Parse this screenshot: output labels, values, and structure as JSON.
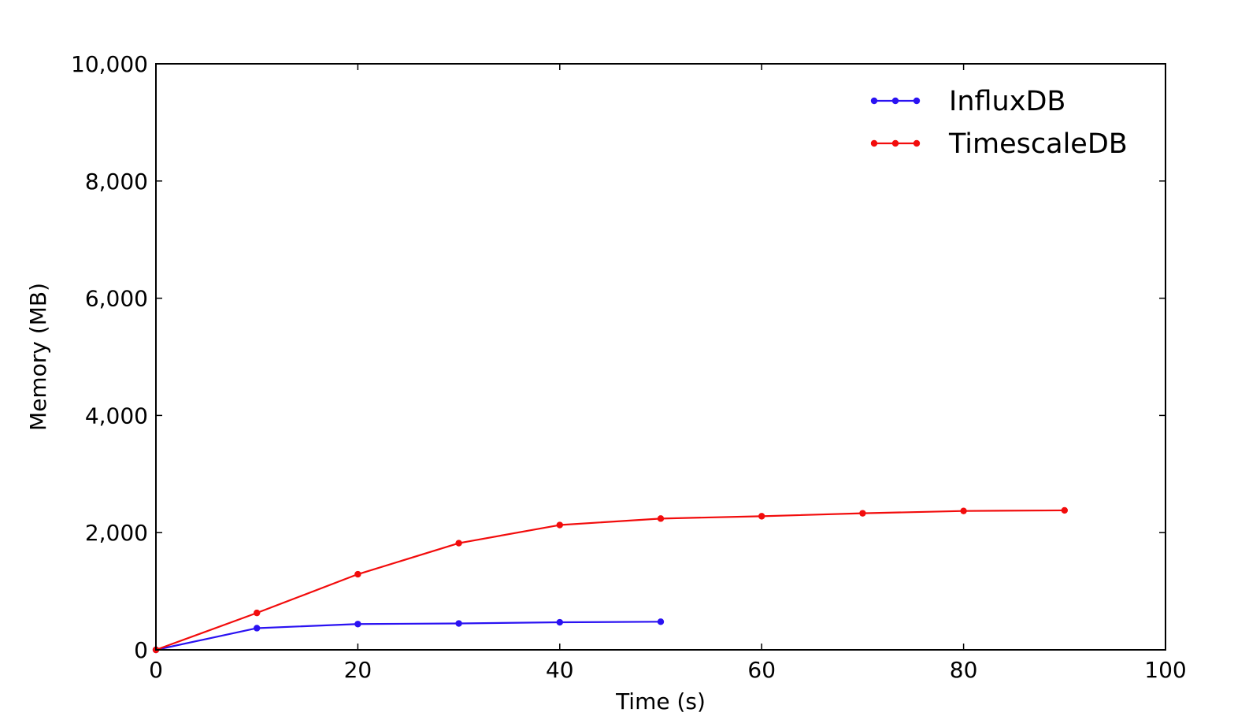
{
  "chart_data": {
    "type": "line",
    "title": "",
    "xlabel": "Time (s)",
    "ylabel": "Memory (MB)",
    "xlim": [
      0,
      100
    ],
    "ylim": [
      0,
      10000
    ],
    "x_ticks": [
      0,
      20,
      40,
      60,
      80,
      100
    ],
    "x_tick_labels": [
      "0",
      "20",
      "40",
      "60",
      "80",
      "100"
    ],
    "y_ticks": [
      0,
      2000,
      4000,
      6000,
      8000,
      10000
    ],
    "y_tick_labels": [
      "0",
      "2,000",
      "4,000",
      "6,000",
      "8,000",
      "10,000"
    ],
    "grid": false,
    "legend_position": "top-right",
    "series": [
      {
        "name": "InfluxDB",
        "color": "#2a12f2",
        "marker": "circle",
        "x": [
          0,
          10,
          20,
          30,
          40,
          50
        ],
        "y": [
          0,
          370,
          440,
          450,
          470,
          480
        ]
      },
      {
        "name": "TimescaleDB",
        "color": "#f20c0c",
        "marker": "circle",
        "x": [
          0,
          10,
          20,
          30,
          40,
          50,
          60,
          70,
          80,
          90
        ],
        "y": [
          0,
          630,
          1290,
          1820,
          2130,
          2240,
          2280,
          2330,
          2370,
          2380
        ]
      }
    ]
  }
}
